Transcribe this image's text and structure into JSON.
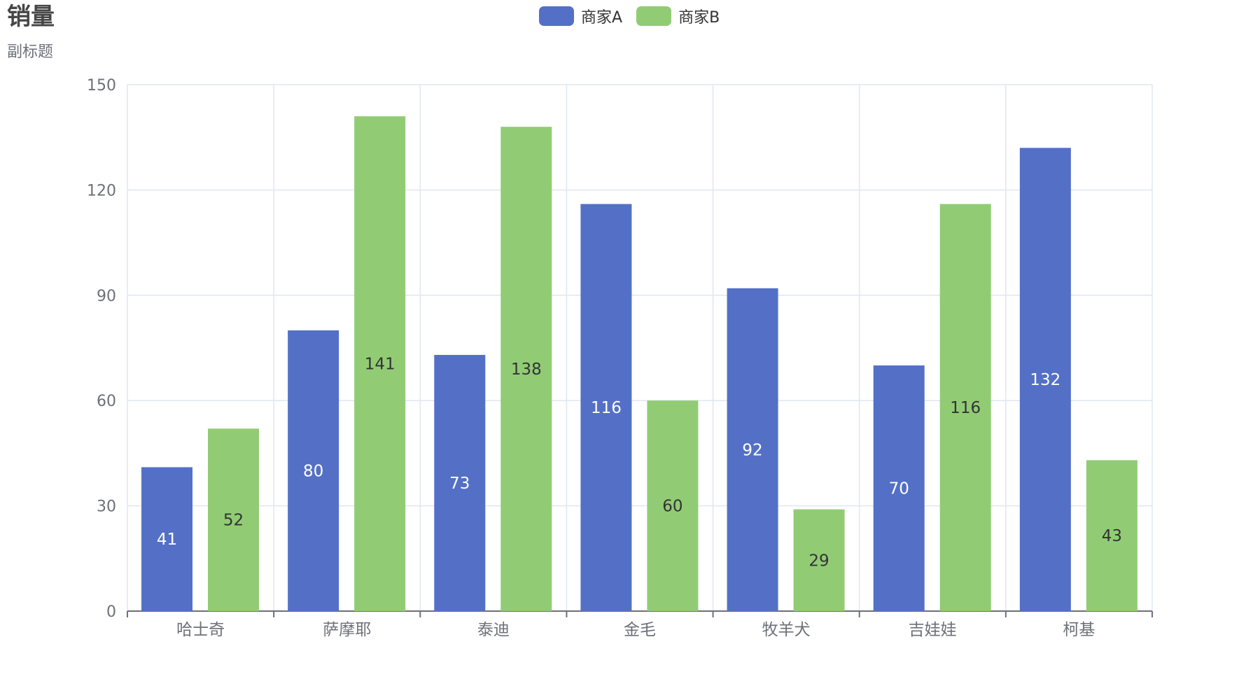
{
  "chart_data": {
    "type": "bar",
    "title": "销量",
    "subtitle": "副标题",
    "categories": [
      "哈士奇",
      "萨摩耶",
      "泰迪",
      "金毛",
      "牧羊犬",
      "吉娃娃",
      "柯基"
    ],
    "series": [
      {
        "name": "商家A",
        "color": "#5470c6",
        "values": [
          41,
          80,
          73,
          116,
          92,
          70,
          132
        ]
      },
      {
        "name": "商家B",
        "color": "#91cc75",
        "values": [
          52,
          141,
          138,
          60,
          29,
          116,
          43
        ]
      }
    ],
    "yticks": [
      0,
      30,
      60,
      90,
      120,
      150
    ],
    "ylim": [
      0,
      150
    ],
    "xlabel": "",
    "ylabel": "",
    "legend_position": "top-center",
    "grid": true
  }
}
